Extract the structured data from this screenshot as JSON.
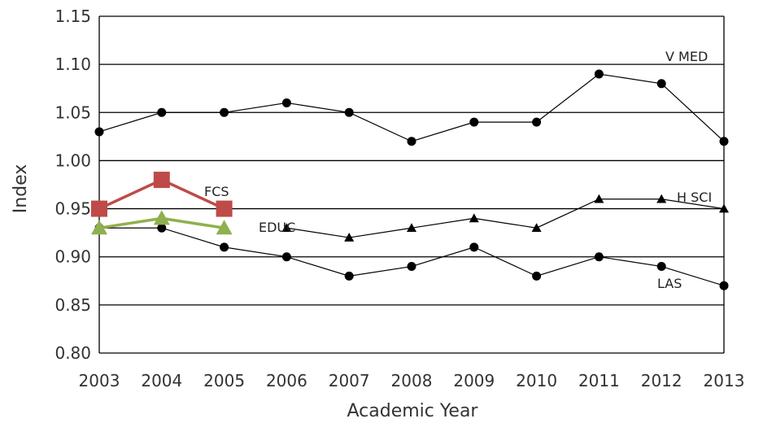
{
  "chart_data": {
    "type": "line",
    "title": "",
    "xlabel": "Academic Year",
    "ylabel": "Index",
    "ylim": [
      0.8,
      1.15
    ],
    "yticks": [
      "0.80",
      "0.85",
      "0.90",
      "0.95",
      "1.00",
      "1.05",
      "1.10",
      "1.15"
    ],
    "categories": [
      "2003",
      "2004",
      "2005",
      "2006",
      "2007",
      "2008",
      "2009",
      "2010",
      "2011",
      "2012",
      "2013"
    ],
    "grid": "horizontal",
    "legend": "none (series labeled directly on lines)",
    "series": [
      {
        "name": "V MED",
        "marker": "circle",
        "color": "#000000",
        "values": [
          1.03,
          1.05,
          1.05,
          1.06,
          1.05,
          1.02,
          1.04,
          1.04,
          1.09,
          1.08,
          1.02
        ]
      },
      {
        "name": "H SCI",
        "marker": "triangle",
        "color": "#000000",
        "values": [
          null,
          null,
          null,
          0.93,
          0.92,
          0.93,
          0.94,
          0.93,
          0.96,
          0.96,
          0.95
        ]
      },
      {
        "name": "LAS",
        "marker": "circle",
        "color": "#000000",
        "values": [
          0.93,
          0.93,
          0.91,
          0.9,
          0.88,
          0.89,
          0.91,
          0.88,
          0.9,
          0.89,
          0.87
        ]
      },
      {
        "name": "FCS",
        "marker": "square",
        "color": "#be4b48",
        "values": [
          0.95,
          0.98,
          0.95,
          null,
          null,
          null,
          null,
          null,
          null,
          null,
          null
        ]
      },
      {
        "name": "EDUC",
        "marker": "triangle",
        "color": "#8fb04e",
        "values": [
          0.93,
          0.94,
          0.93,
          null,
          null,
          null,
          null,
          null,
          null,
          null,
          null
        ]
      }
    ]
  }
}
